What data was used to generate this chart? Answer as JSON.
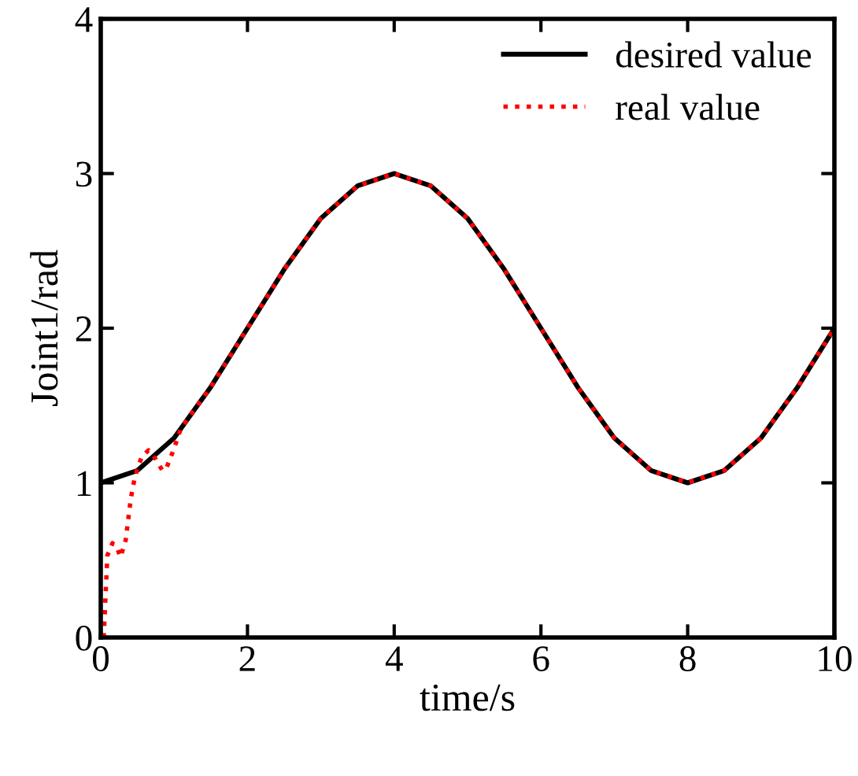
{
  "chart_data": {
    "type": "line",
    "xlabel": "time/s",
    "ylabel": "Joint1/rad",
    "xlim": [
      0,
      10
    ],
    "ylim": [
      0,
      4
    ],
    "xticks": [
      0,
      2,
      4,
      6,
      8,
      10
    ],
    "yticks": [
      0,
      1,
      2,
      3,
      4
    ],
    "grid": false,
    "legend": "top right",
    "series": [
      {
        "name": "desired value",
        "color": "#000000",
        "line_style": "solid",
        "x": [
          0,
          0.5,
          1,
          1.5,
          2,
          2.5,
          3,
          3.5,
          4,
          4.5,
          5,
          5.5,
          6,
          6.5,
          7,
          7.5,
          8,
          8.5,
          9,
          9.5,
          10
        ],
        "values": [
          1,
          1.08,
          1.29,
          1.62,
          2,
          2.38,
          2.71,
          2.92,
          3,
          2.92,
          2.71,
          2.38,
          2,
          1.62,
          1.29,
          1.08,
          1,
          1.08,
          1.29,
          1.62,
          2
        ]
      },
      {
        "name": "real value",
        "color": "#ff0000",
        "line_style": "dotted",
        "x": [
          0.04,
          0.09,
          0.16,
          0.22,
          0.27,
          0.34,
          0.41,
          0.47,
          0.56,
          0.65,
          0.74,
          0.84,
          0.89,
          0.99,
          1.09,
          1.24,
          1.5,
          2,
          2.5,
          3,
          3.5,
          4,
          4.5,
          5,
          5.5,
          6,
          6.5,
          7,
          7.5,
          8,
          8.5,
          9,
          9.5,
          10
        ],
        "values": [
          0,
          0.53,
          0.61,
          0.58,
          0.52,
          0.63,
          0.9,
          1.05,
          1.17,
          1.21,
          1.16,
          1.08,
          1.09,
          1.21,
          1.35,
          1.45,
          1.62,
          2,
          2.38,
          2.71,
          2.92,
          3,
          2.92,
          2.71,
          2.38,
          2,
          1.62,
          1.29,
          1.08,
          1,
          1.08,
          1.29,
          1.62,
          2
        ]
      }
    ]
  }
}
